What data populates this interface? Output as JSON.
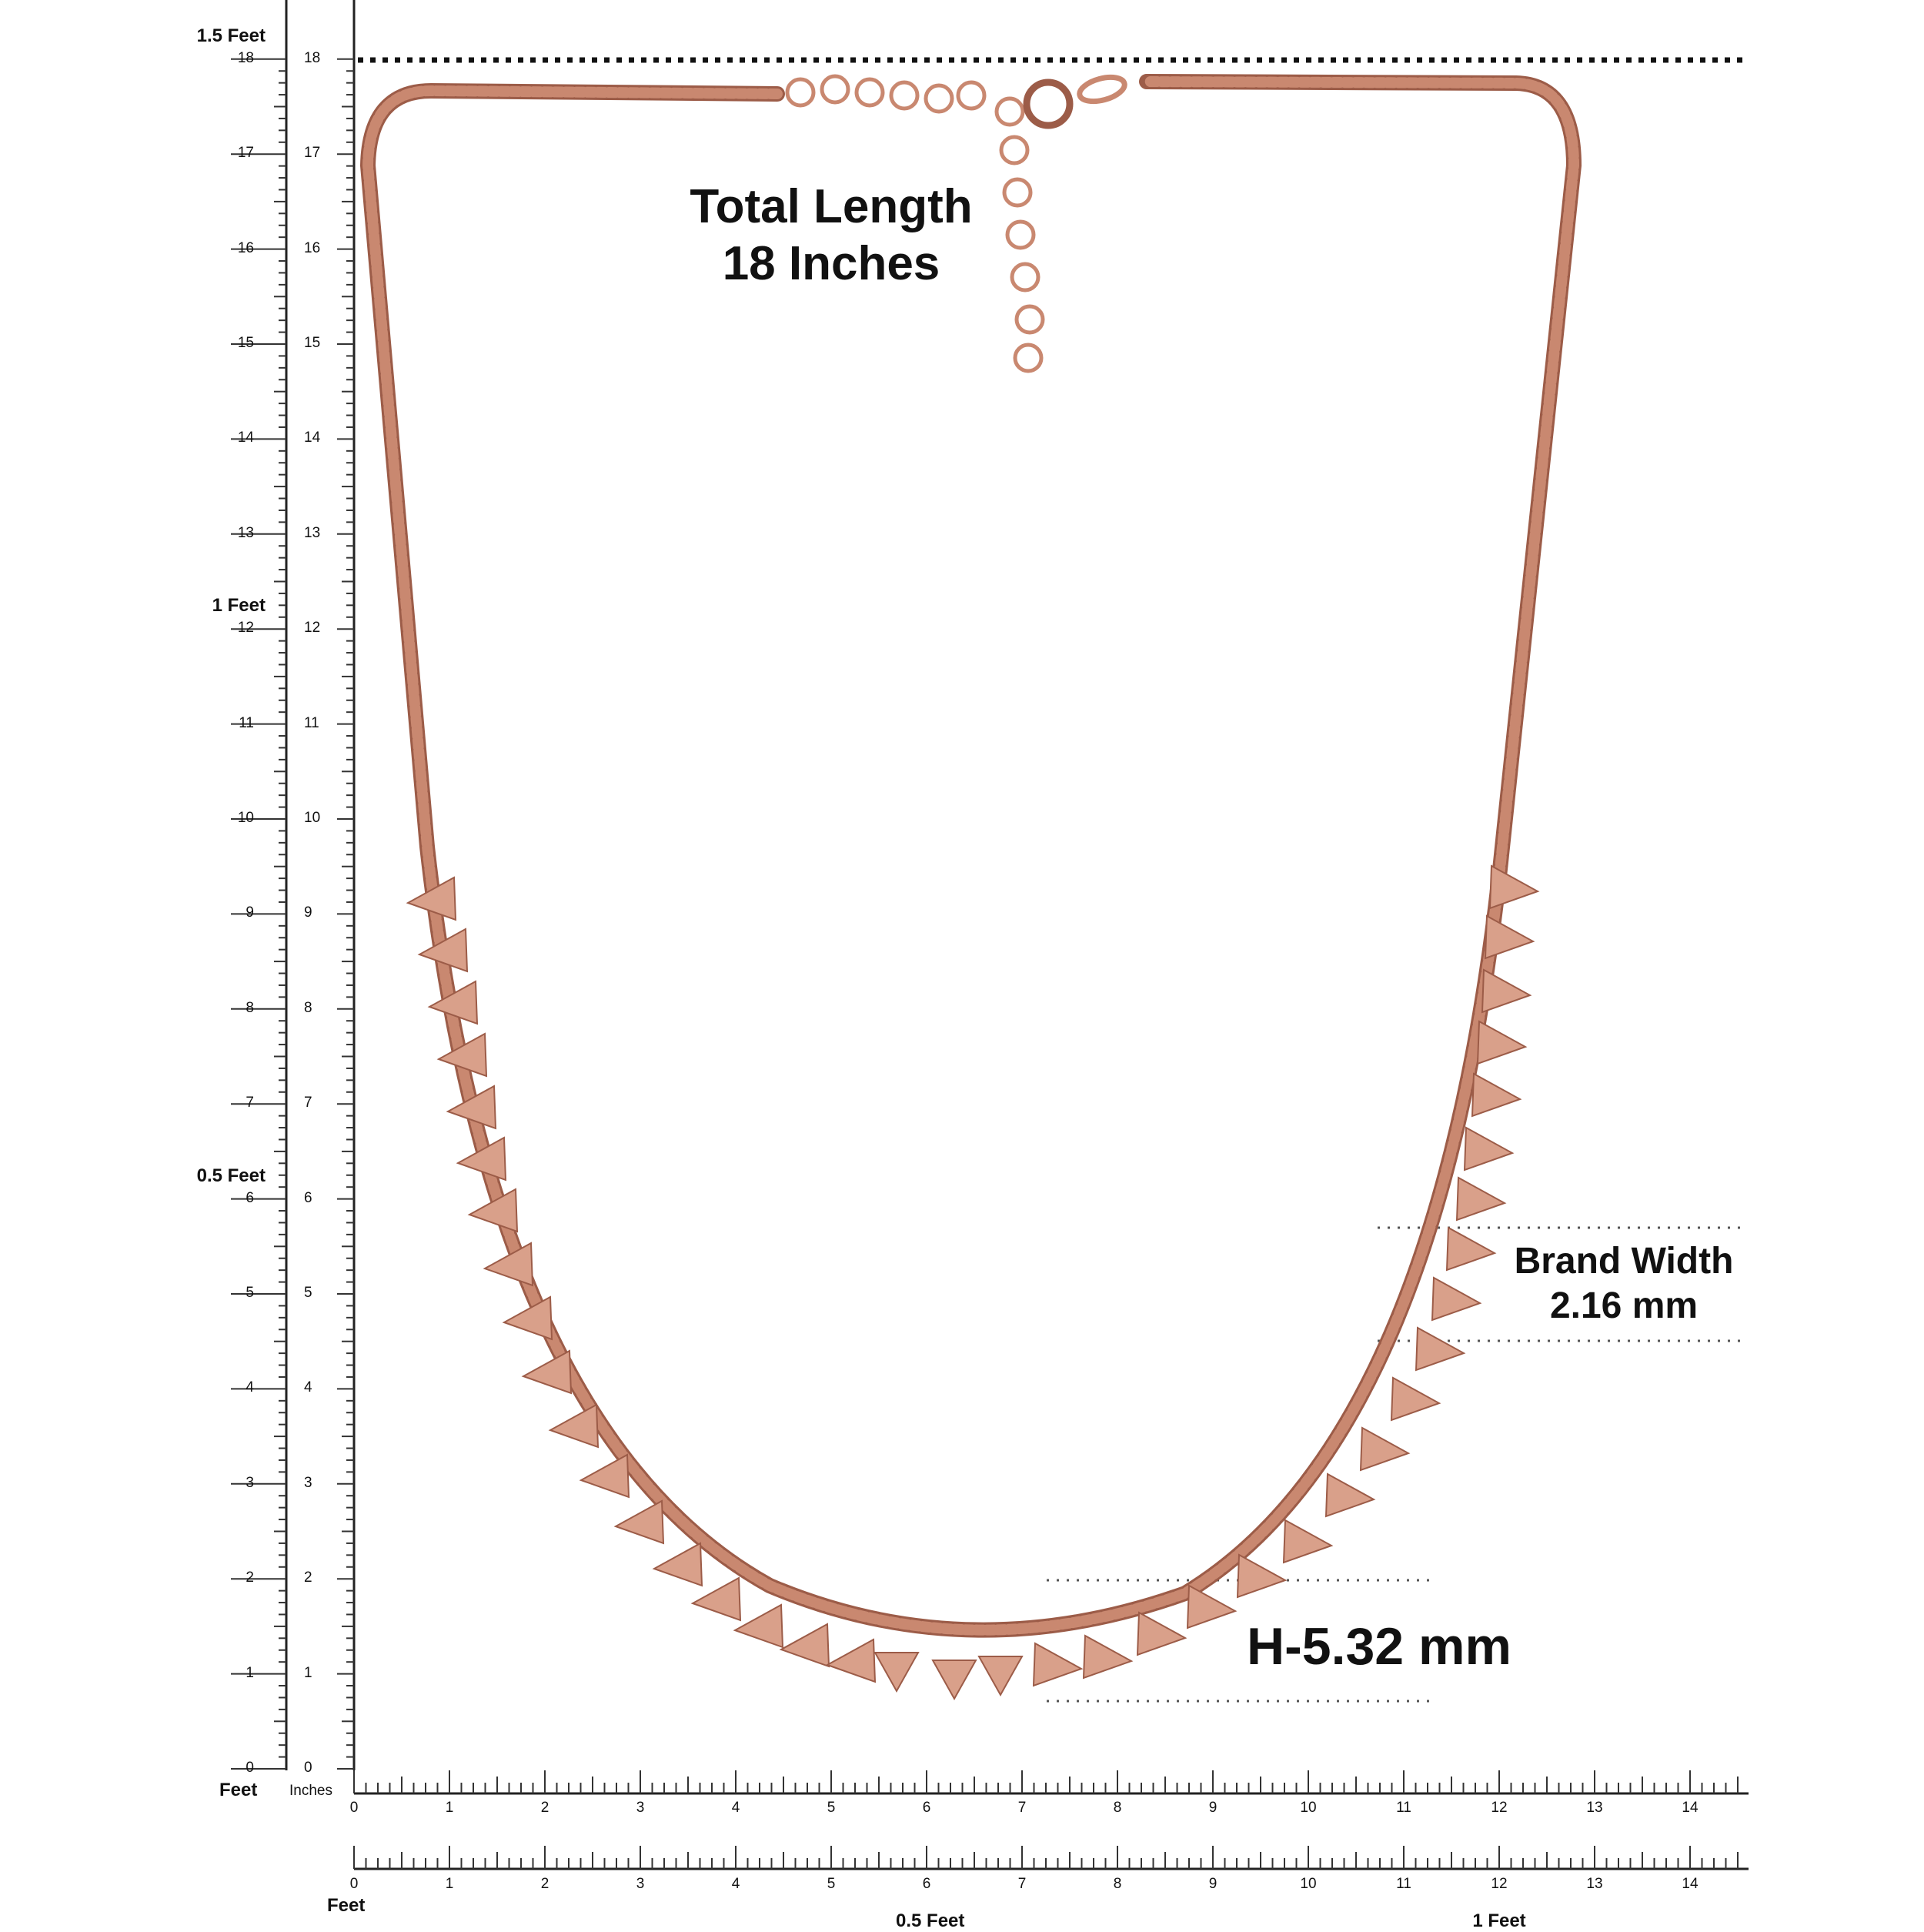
{
  "title": {
    "line1": "Total Length",
    "line2": "18 Inches"
  },
  "brand_width": {
    "line1": "Brand Width",
    "line2": "2.16 mm"
  },
  "height_label": "H-5.32 mm",
  "ruler_left": {
    "inches": [
      "0",
      "1",
      "2",
      "3",
      "4",
      "5",
      "6",
      "7",
      "8",
      "9",
      "10",
      "11",
      "12",
      "13",
      "14",
      "15",
      "16",
      "17",
      "18"
    ],
    "feet_marks": [
      {
        "inch": 6,
        "label": "0.5 Feet"
      },
      {
        "inch": 12,
        "label": "1 Feet"
      },
      {
        "inch": 18,
        "label": "1.5 Feet"
      }
    ],
    "feet_caption": "Feet",
    "inches_caption": "Inches"
  },
  "ruler_bottom": {
    "inches": [
      "0",
      "1",
      "2",
      "3",
      "4",
      "5",
      "6",
      "7",
      "8",
      "9",
      "10",
      "11",
      "12",
      "13",
      "14"
    ],
    "feet_caption": "Feet",
    "feet_marks": [
      {
        "inch": 6,
        "label": "0.5 Feet"
      },
      {
        "inch": 12,
        "label": "1 Feet"
      }
    ]
  },
  "colors": {
    "chain": "#c98870",
    "chain_dark": "#9c5c48",
    "pendant": "#d9a08a",
    "ink": "#111111"
  }
}
